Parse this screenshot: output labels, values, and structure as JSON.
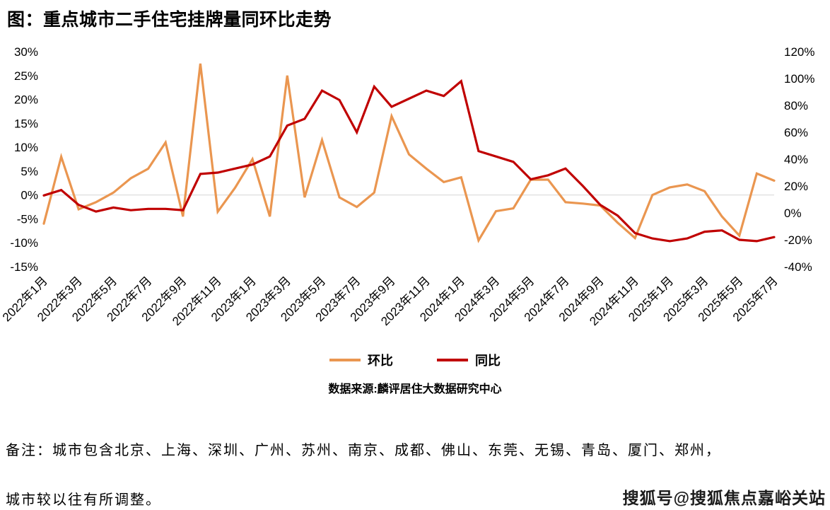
{
  "title": "图：重点城市二手住宅挂牌量同环比走势",
  "chart_data": {
    "type": "line",
    "title": "重点城市二手住宅挂牌量同环比走势",
    "x": [
      "2022年1月",
      "2022年2月",
      "2022年3月",
      "2022年4月",
      "2022年5月",
      "2022年6月",
      "2022年7月",
      "2022年8月",
      "2022年9月",
      "2022年10月",
      "2022年11月",
      "2022年12月",
      "2023年1月",
      "2023年2月",
      "2023年3月",
      "2023年4月",
      "2023年5月",
      "2023年6月",
      "2023年7月",
      "2023年8月",
      "2023年9月",
      "2023年10月",
      "2023年11月",
      "2023年12月",
      "2024年1月",
      "2024年2月",
      "2024年3月",
      "2024年4月",
      "2024年5月",
      "2024年6月",
      "2024年7月",
      "2024年8月",
      "2024年9月",
      "2024年10月",
      "2024年11月",
      "2024年12月",
      "2025年1月",
      "2025年2月",
      "2025年3月",
      "2025年4月",
      "2025年5月",
      "2025年6月",
      "2025年7月"
    ],
    "x_tick_step": 2,
    "left_axis": {
      "min": -15,
      "max": 30,
      "ticks": [
        "30%",
        "25%",
        "20%",
        "15%",
        "10%",
        "5%",
        "0%",
        "-5%",
        "-10%",
        "-15%"
      ]
    },
    "right_axis": {
      "min": -40,
      "max": 120,
      "ticks": [
        "120%",
        "100%",
        "80%",
        "60%",
        "40%",
        "20%",
        "0%",
        "-20%",
        "-40%"
      ]
    },
    "grid": "zero-line-only",
    "legend_position": "bottom",
    "series": [
      {
        "name": "环比",
        "axis": "left",
        "color": "#EA9650",
        "values": [
          -6,
          8,
          -3,
          -1.5,
          0.5,
          3.5,
          5.5,
          11,
          -4.5,
          27.5,
          -3.5,
          1.5,
          7.5,
          -4.5,
          25,
          -0.5,
          11.5,
          -0.5,
          -2.5,
          0.5,
          16.5,
          8.5,
          5.5,
          2.7,
          3.7,
          -9.5,
          -3.4,
          -2.8,
          3.2,
          3.2,
          -1.5,
          -1.8,
          -2.2,
          -5.8,
          -9,
          0,
          1.6,
          2.2,
          0.8,
          -4.5,
          -8.5,
          4.5,
          3
        ]
      },
      {
        "name": "同比",
        "axis": "right",
        "color": "#C00000",
        "values": [
          13,
          17,
          6,
          1,
          4,
          2,
          3,
          3,
          2,
          29,
          30,
          33,
          36,
          42,
          65,
          70,
          91,
          84,
          60,
          94,
          79,
          85,
          91,
          87,
          98,
          46,
          42,
          38,
          25,
          28,
          33,
          20,
          6,
          -2,
          -15,
          -19,
          -21,
          -19,
          -14,
          -13,
          -20,
          -21,
          -18
        ]
      }
    ],
    "source": "数据来源:麟评居住大数据研究中心"
  },
  "note": {
    "line1": "备注：城市包含北京、上海、深圳、广州、苏州、南京、成都、佛山、东莞、无锡、青岛、厦门、郑州，",
    "line2": "城市较以往有所调整。"
  },
  "watermark": "搜狐号@搜狐焦点嘉峪关站"
}
